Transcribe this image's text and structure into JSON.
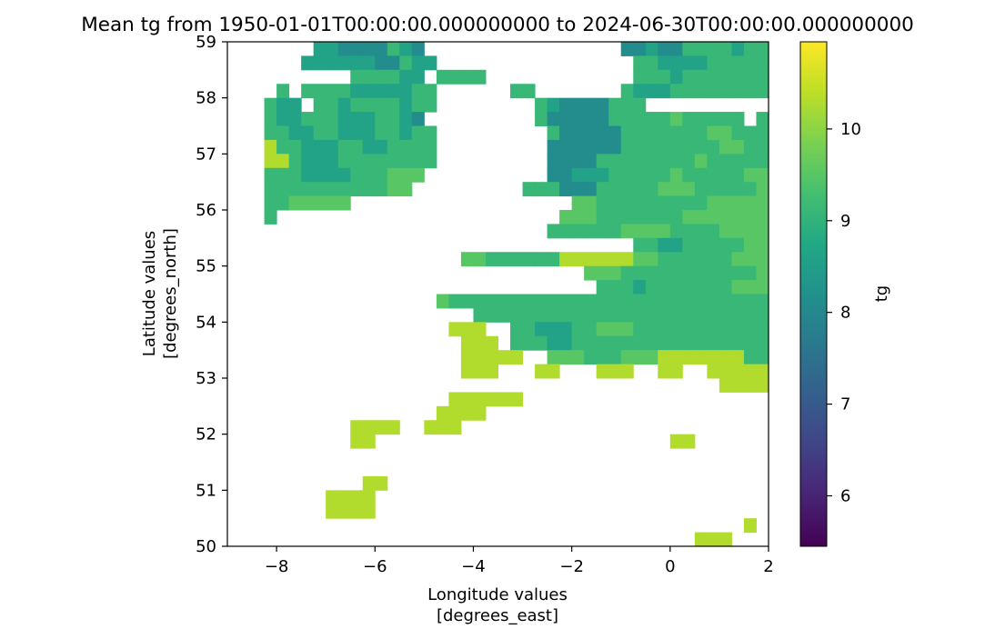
{
  "chart_data": {
    "type": "heatmap",
    "title": "Mean tg from 1950-01-01T00:00:00.000000000 to 2024-06-30T00:00:00.000000000",
    "xlabel": "Longitude values",
    "xunits": "[degrees_east]",
    "ylabel": "Latitude values",
    "yunits": "[degrees_north]",
    "xlim": [
      -9,
      2
    ],
    "ylim": [
      50,
      59
    ],
    "xticks": [
      -8,
      -6,
      -4,
      -2,
      0,
      2
    ],
    "xtick_labels": [
      "−8",
      "−6",
      "−4",
      "−2",
      "0",
      "2"
    ],
    "yticks": [
      50,
      51,
      52,
      53,
      54,
      55,
      56,
      57,
      58,
      59
    ],
    "ytick_labels": [
      "50",
      "51",
      "52",
      "53",
      "54",
      "55",
      "56",
      "57",
      "58",
      "59"
    ],
    "grid": false,
    "colormap": "viridis",
    "colorbar": {
      "label": "tg",
      "range": [
        5.45,
        10.95
      ],
      "ticks": [
        6,
        7,
        8,
        9,
        10
      ],
      "tick_labels": [
        "6",
        "7",
        "8",
        "9",
        "10"
      ]
    },
    "grid_spec": {
      "lon_start": -9,
      "lat_start": 50,
      "cell_deg": 0.25,
      "rows_note": "rows run from north (top, lat 58.75) to south (bottom, lat 50.0); '.' = no data",
      "legend": {
        "a": 5.6,
        "b": 6.0,
        "c": 6.6,
        "d": 7.2,
        "e": 7.6,
        "f": 8.1,
        "g": 8.6,
        "h": 9.1,
        "i": 9.5,
        "j": 9.9,
        "k": 10.3,
        "l": 10.7
      },
      "rows": [
        "..........................................e.......",
        "...............f..........ddddddd.f...............",
        "...........ggf........d.dddcddddd.f...............",
        "..........f...f........e.cccde..dd.d..............",
        "....g.......f.....f...........e....f..............",
        "..............f.......eccdcfffffffff..............",
        "..............f......ddccccdffffffff..............",
        "...............f...f.ddbcbbbccdfffff..............",
        "...................feeeebbbbaaccfff...............",
        "...................eeeddbbbbaaddffg...............",
        "..................ff..eeeeddbbeef.................",
        ".................f.f.ffgddddffgff.................",
        ".................ff....gffdffffgf.................",
        "...................fffffffeeeeeffff...............",
        "..................gf....feeeddeeffgg..............",
        "..................f..........g....gg..............",
        "............................ggeddddeeg............",
        ".........gggggffg.....f..ggggg.dddeeg.............",
        "........hgghffgg..h.......gggghgg.eeeg............",
        "..........hgffggfghgh.............gffeggeggg......",
        "......ghgffffgghhh.h..........gffgg.ddfgfh........",
        "......gfggfghgh.................ffgfd.ghhhgh......",
        ".......ggffffhgf................ffgffhhhhghhgh.....",
        "......ggggggffhgg................hhgggghhhhhh.....",
        "..........hhhhgg.hhhh............hhhghhhhhhhh.....",
        "....h.hhhhggggghh......hh.......hggghhhhhhhhhh....",
        "...hgg.hhghhhhghh........hgffffhhh................",
        "...hgghhhggghhgf.........hfffffhhhhhihhhhh.hhh....",
        "...hhgghhggghhghh.........hfffffhhhhhhhiihhhhhhhh.",
        "...khhggghhgghhhh.........ffffffhhhhhhhhiihhhhhhhh",
        "...kkhggghhhhhhhh.........ffffhhhhhhhhihhhhhhhhhhh",
        "...hhhgggghhhiii..........ffggghhhhhihhhhhiiiiiihh",
        "...hhhhhhhhhhii.........hhhfffhhhhhiiihhhhhiiiiiii",
        "...hhiiiii..................iihhhhhhhhhiiiiiiiiii.",
        "...h.......................iiihhhhhhhiiiiiiiiiiii.",
        "..........................hhhhhhiiiihhhhiiiiiiiiih",
        ".................................hhgghhhhhiiiiiiii",
        "...................iihhhhhhkkkkkkiihhhhhhiiiikiii.",
        ".............................iiihhhhhhhhhhhiiiii..",
        "..............................hhhghhhhhhhiiihhhi..",
        ".................ihhhhhhhhhhhhhhhhhhhhhhhhhhhhi...",
        "....................hhhhhhhhhhhhhhhhhhhhhhhhhhh...",
        "..................kkk..hhggghhiiihhhhhhhhhhhhhhk..",
        "...................kkk.hhhgghhhhhhhhhhhhhhhhhhhhk.",
        "...................kkkkk..iiihhhiiikkkkkkkhhhhhhkk",
        "...................kkk...kk...kkk..kk..kkkkkhhhhhk",
        "........................................kkkkkkkkkk",
        "..................kkkkkk.........................k",
        ".................kkkk............................k",
        "..........kkkk..kkk...............................",
        "..........kk........................kk............",
        "................................................kk",
        ".................................................k",
        "...........kk....................................k",
        "........kkkk......................................",
        "........kkkk......................................",
        "..........................................k.......",
        "......................................kkk........."
      ]
    }
  }
}
